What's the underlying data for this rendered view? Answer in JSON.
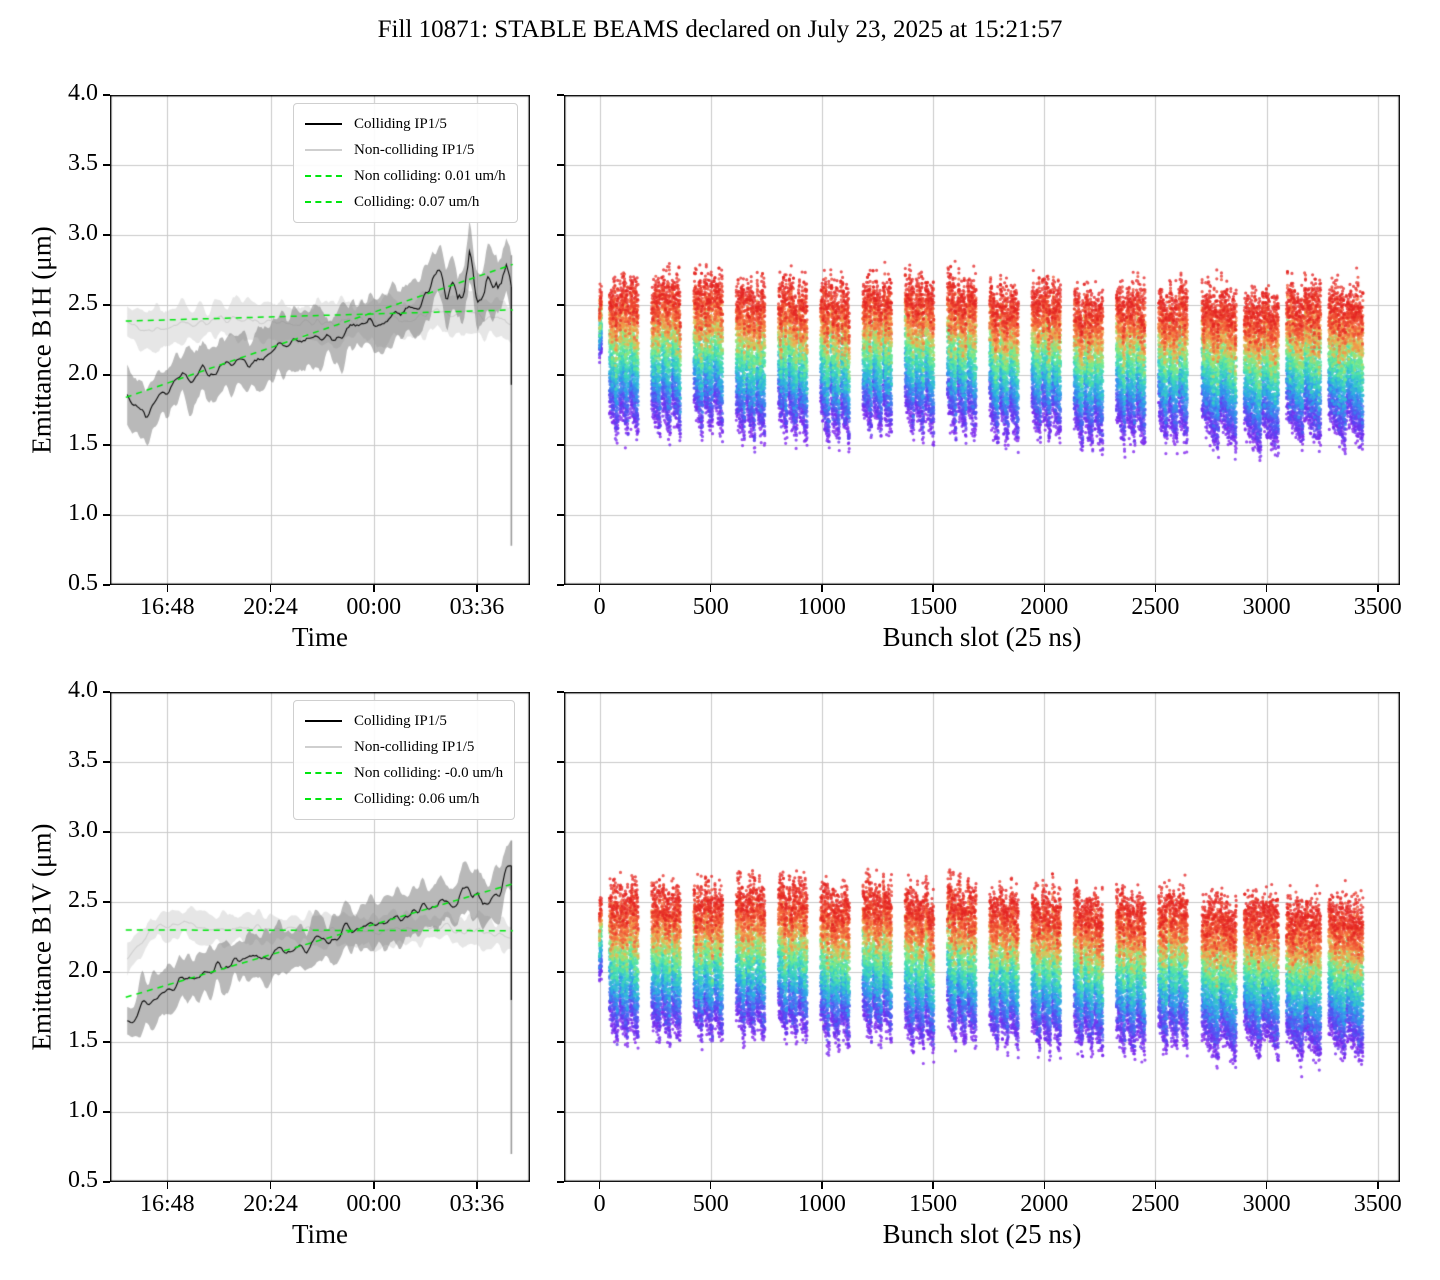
{
  "title": "Fill 10871: STABLE BEAMS declared on July 23, 2025 at 15:21:57",
  "colors": {
    "trend_green": "#00e60e",
    "colliding_line": "#0a0a0a",
    "colliding_band": "rgba(128,128,128,0.55)",
    "non_colliding_line": "#cfcfcf",
    "non_colliding_band": "rgba(205,205,205,0.5)",
    "grid": "#c9c9c9",
    "spine": "#000000"
  },
  "chart_data": [
    {
      "id": "emittance-b1h-vs-time",
      "type": "line",
      "xlabel": "Time",
      "ylabel": "Emittance B1H (μm)",
      "xlim": [
        14.8,
        29.45
      ],
      "ylim": [
        0.5,
        4.0
      ],
      "grid": true,
      "xticks": [
        {
          "v": 16.8,
          "label": "16:48"
        },
        {
          "v": 20.4,
          "label": "20:24"
        },
        {
          "v": 24.0,
          "label": "00:00"
        },
        {
          "v": 27.6,
          "label": "03:36"
        }
      ],
      "yticks": [
        {
          "v": 0.5,
          "label": "0.5"
        },
        {
          "v": 1.0,
          "label": "1.0"
        },
        {
          "v": 1.5,
          "label": "1.5"
        },
        {
          "v": 2.0,
          "label": "2.0"
        },
        {
          "v": 2.5,
          "label": "2.5"
        },
        {
          "v": 3.0,
          "label": "3.0"
        },
        {
          "v": 3.5,
          "label": "3.5"
        },
        {
          "v": 4.0,
          "label": "4.0"
        }
      ],
      "legend": [
        {
          "label": "Colliding IP1/5",
          "style": "solid",
          "color": "#000000"
        },
        {
          "label": "Non-colliding IP1/5",
          "style": "solid",
          "color": "#cfcfcf"
        },
        {
          "label": "Non colliding: 0.01 um/h",
          "style": "dashed",
          "color": "#00e60e"
        },
        {
          "label": "Colliding: 0.07 um/h",
          "style": "dashed",
          "color": "#00e60e"
        }
      ],
      "trend_color": "#00e60e",
      "slopes": {
        "colliding_um_per_h": 0.07,
        "non_colliding_um_per_h": 0.01
      },
      "series": {
        "non_colliding": {
          "t": [
            15.4,
            16.0,
            16.6,
            17.2,
            17.8,
            18.4,
            19.0,
            19.6,
            20.2,
            20.8,
            21.4,
            22.0,
            22.6,
            23.2,
            23.8,
            24.4,
            25.0,
            25.6,
            26.2,
            26.8,
            27.4,
            28.0,
            28.4,
            28.8
          ],
          "v": [
            2.36,
            2.31,
            2.34,
            2.38,
            2.36,
            2.42,
            2.38,
            2.4,
            2.37,
            2.38,
            2.36,
            2.38,
            2.37,
            2.38,
            2.38,
            2.4,
            2.4,
            2.42,
            2.46,
            2.42,
            2.44,
            2.42,
            2.4,
            2.36
          ],
          "band": 0.13,
          "noise": 0.03,
          "samples": 230,
          "seed": 41,
          "line_color": "#cfcfcf",
          "band_color": "rgba(205,205,205,0.5)"
        },
        "colliding": {
          "t": [
            15.4,
            15.7,
            16.05,
            16.35,
            16.65,
            16.95,
            17.3,
            17.65,
            18.0,
            18.4,
            18.8,
            19.2,
            19.6,
            20.0,
            20.4,
            20.8,
            21.2,
            21.6,
            22.0,
            22.4,
            22.8,
            23.2,
            23.6,
            24.0,
            24.4,
            24.8,
            25.2,
            25.6,
            25.95,
            26.25,
            26.55,
            26.85,
            27.1,
            27.35,
            27.6,
            27.85,
            28.1,
            28.35,
            28.6,
            28.8
          ],
          "v": [
            1.86,
            1.8,
            1.71,
            1.8,
            1.87,
            1.93,
            2.03,
            1.96,
            2.05,
            1.99,
            2.07,
            2.11,
            2.06,
            2.13,
            2.17,
            2.21,
            2.25,
            2.22,
            2.28,
            2.31,
            2.27,
            2.35,
            2.38,
            2.36,
            2.43,
            2.41,
            2.49,
            2.53,
            2.62,
            2.8,
            2.56,
            2.66,
            2.5,
            2.83,
            2.63,
            2.59,
            2.73,
            2.63,
            2.84,
            2.72
          ],
          "band": 0.18,
          "noise": 0.045,
          "noise_late": 0.12,
          "late_after": 26.2,
          "samples": 230,
          "seed": 17,
          "line_color": "#0a0a0a",
          "band_color": "rgba(128,128,128,0.55)",
          "spike": {
            "line_to": 1.93,
            "band_to": 0.78,
            "color": "#9b9b9b"
          }
        }
      },
      "trends": [
        {
          "t": [
            15.35,
            28.85
          ],
          "v": [
            2.385,
            2.465
          ]
        },
        {
          "t": [
            15.35,
            28.85
          ],
          "v": [
            1.84,
            2.79
          ]
        }
      ]
    },
    {
      "id": "emittance-b1h-vs-bunch",
      "type": "scatter",
      "xlabel": "Bunch slot (25 ns)",
      "ylabel": "",
      "xlim": [
        -160,
        3600
      ],
      "ylim": [
        0.5,
        4.0
      ],
      "grid": true,
      "xticks": [
        {
          "v": 0,
          "label": "0"
        },
        {
          "v": 500,
          "label": "500"
        },
        {
          "v": 1000,
          "label": "1000"
        },
        {
          "v": 1500,
          "label": "1500"
        },
        {
          "v": 2000,
          "label": "2000"
        },
        {
          "v": 2500,
          "label": "2500"
        },
        {
          "v": 3000,
          "label": "3000"
        },
        {
          "v": 3500,
          "label": "3500"
        }
      ],
      "yticks": [
        {
          "v": 0.5
        },
        {
          "v": 1.0
        },
        {
          "v": 1.5
        },
        {
          "v": 2.0
        },
        {
          "v": 2.5
        },
        {
          "v": 3.0
        },
        {
          "v": 3.5
        },
        {
          "v": 4.0
        }
      ],
      "colormap": [
        [
          0.0,
          "#7a18ec"
        ],
        [
          0.16,
          "#4f52f2"
        ],
        [
          0.33,
          "#28a8e8"
        ],
        [
          0.5,
          "#40dfb0"
        ],
        [
          0.62,
          "#8aeb7a"
        ],
        [
          0.72,
          "#f3b44f"
        ],
        [
          0.84,
          "#f4653c"
        ],
        [
          1.0,
          "#e32020"
        ]
      ],
      "color_encodes": "time since stable beams (violet = early, red = late)",
      "point_radius": 1.6,
      "alpha": 0.75,
      "n_time": 32,
      "pilot": {
        "slot": 0,
        "len": 10,
        "base": 2.18,
        "growth": 0.38
      },
      "trains": [
        {
          "start": 45,
          "len": 130
        },
        {
          "start": 235,
          "len": 130
        },
        {
          "start": 425,
          "len": 130
        },
        {
          "start": 615,
          "len": 130
        },
        {
          "start": 805,
          "len": 130
        },
        {
          "start": 995,
          "len": 130
        },
        {
          "start": 1185,
          "len": 130
        },
        {
          "start": 1375,
          "len": 130
        },
        {
          "start": 1565,
          "len": 130
        },
        {
          "start": 1755,
          "len": 130
        },
        {
          "start": 1945,
          "len": 130
        },
        {
          "start": 2135,
          "len": 130
        },
        {
          "start": 2325,
          "len": 130
        },
        {
          "start": 2515,
          "len": 130
        },
        {
          "start": 2710,
          "len": 155,
          "dense": true
        },
        {
          "start": 2900,
          "len": 155,
          "dense": true
        },
        {
          "start": 3090,
          "len": 155,
          "dense": true
        },
        {
          "start": 3280,
          "len": 155,
          "dense": true
        }
      ],
      "substreaks": 3,
      "substreak_gap": 5,
      "dense_substreaks": 2,
      "dense_gap": 3,
      "bunch_step": 2,
      "base_mean": 1.82,
      "base_spread": 0.06,
      "head_tail_drop": 0.24,
      "growth_mean": 0.8,
      "growth_spread": 0.12,
      "slot_tilt": -0.1,
      "meas_noise": 0.045,
      "seed": 7,
      "y_range_observed": [
        1.4,
        3.1
      ]
    },
    {
      "id": "emittance-b1v-vs-time",
      "type": "line",
      "xlabel": "Time",
      "ylabel": "Emittance B1V (μm)",
      "xlim": [
        14.8,
        29.45
      ],
      "ylim": [
        0.5,
        4.0
      ],
      "grid": true,
      "xticks": [
        {
          "v": 16.8,
          "label": "16:48"
        },
        {
          "v": 20.4,
          "label": "20:24"
        },
        {
          "v": 24.0,
          "label": "00:00"
        },
        {
          "v": 27.6,
          "label": "03:36"
        }
      ],
      "yticks": [
        {
          "v": 0.5,
          "label": "0.5"
        },
        {
          "v": 1.0,
          "label": "1.0"
        },
        {
          "v": 1.5,
          "label": "1.5"
        },
        {
          "v": 2.0,
          "label": "2.0"
        },
        {
          "v": 2.5,
          "label": "2.5"
        },
        {
          "v": 3.0,
          "label": "3.0"
        },
        {
          "v": 3.5,
          "label": "3.5"
        },
        {
          "v": 4.0,
          "label": "4.0"
        }
      ],
      "legend": [
        {
          "label": "Colliding IP1/5",
          "style": "solid",
          "color": "#000000"
        },
        {
          "label": "Non-colliding IP1/5",
          "style": "solid",
          "color": "#cfcfcf"
        },
        {
          "label": "Non colliding: -0.0 um/h",
          "style": "dashed",
          "color": "#00e60e"
        },
        {
          "label": "Colliding: 0.06 um/h",
          "style": "dashed",
          "color": "#00e60e"
        }
      ],
      "trend_color": "#00e60e",
      "slopes": {
        "colliding_um_per_h": 0.06,
        "non_colliding_um_per_h": -0.0
      },
      "series": {
        "non_colliding": {
          "t": [
            15.4,
            15.8,
            16.2,
            16.6,
            17.0,
            17.6,
            18.2,
            19.0,
            20.0,
            21.0,
            22.0,
            23.0,
            24.0,
            25.0,
            26.0,
            26.6,
            27.2,
            27.8,
            28.3,
            28.8
          ],
          "v": [
            2.12,
            2.21,
            2.28,
            2.33,
            2.36,
            2.34,
            2.32,
            2.3,
            2.32,
            2.3,
            2.3,
            2.31,
            2.28,
            2.3,
            2.3,
            2.32,
            2.28,
            2.3,
            2.26,
            2.24
          ],
          "band": 0.1,
          "noise": 0.025,
          "samples": 230,
          "seed": 29,
          "line_color": "#cfcfcf",
          "band_color": "rgba(205,205,205,0.5)"
        },
        "colliding": {
          "t": [
            15.4,
            15.7,
            16.0,
            16.4,
            16.8,
            17.2,
            17.6,
            18.0,
            18.5,
            19.0,
            19.5,
            20.0,
            20.5,
            21.0,
            21.5,
            22.0,
            22.5,
            23.0,
            23.5,
            24.0,
            24.5,
            25.0,
            25.5,
            26.0,
            26.5,
            26.9,
            27.3,
            27.7,
            28.0,
            28.3,
            28.55,
            28.8
          ],
          "v": [
            1.66,
            1.73,
            1.77,
            1.81,
            1.89,
            1.95,
            1.98,
            2.01,
            2.03,
            2.07,
            2.06,
            2.11,
            2.13,
            2.17,
            2.16,
            2.21,
            2.25,
            2.29,
            2.31,
            2.33,
            2.35,
            2.39,
            2.43,
            2.47,
            2.51,
            2.49,
            2.56,
            2.59,
            2.53,
            2.63,
            2.59,
            2.63
          ],
          "band": 0.16,
          "noise": 0.04,
          "noise_late": 0.09,
          "late_after": 26.5,
          "samples": 230,
          "seed": 13,
          "line_color": "#0a0a0a",
          "band_color": "rgba(128,128,128,0.55)",
          "spike": {
            "line_to": 1.8,
            "band_to": 0.7,
            "color": "#9b9b9b"
          }
        }
      },
      "trends": [
        {
          "t": [
            15.35,
            28.85
          ],
          "v": [
            2.3,
            2.295
          ]
        },
        {
          "t": [
            15.35,
            28.85
          ],
          "v": [
            1.82,
            2.63
          ]
        }
      ]
    },
    {
      "id": "emittance-b1v-vs-bunch",
      "type": "scatter",
      "xlabel": "Bunch slot (25 ns)",
      "ylabel": "",
      "xlim": [
        -160,
        3600
      ],
      "ylim": [
        0.5,
        4.0
      ],
      "grid": true,
      "xticks": [
        {
          "v": 0,
          "label": "0"
        },
        {
          "v": 500,
          "label": "500"
        },
        {
          "v": 1000,
          "label": "1000"
        },
        {
          "v": 1500,
          "label": "1500"
        },
        {
          "v": 2000,
          "label": "2000"
        },
        {
          "v": 2500,
          "label": "2500"
        },
        {
          "v": 3000,
          "label": "3000"
        },
        {
          "v": 3500,
          "label": "3500"
        }
      ],
      "yticks": [
        {
          "v": 0.5
        },
        {
          "v": 1.0
        },
        {
          "v": 1.5
        },
        {
          "v": 2.0
        },
        {
          "v": 2.5
        },
        {
          "v": 3.0
        },
        {
          "v": 3.5
        },
        {
          "v": 4.0
        }
      ],
      "colormap": [
        [
          0.0,
          "#7a18ec"
        ],
        [
          0.16,
          "#4f52f2"
        ],
        [
          0.33,
          "#28a8e8"
        ],
        [
          0.5,
          "#40dfb0"
        ],
        [
          0.62,
          "#8aeb7a"
        ],
        [
          0.72,
          "#f3b44f"
        ],
        [
          0.84,
          "#f4653c"
        ],
        [
          1.0,
          "#e32020"
        ]
      ],
      "color_encodes": "time since stable beams (violet = early, red = late)",
      "point_radius": 1.6,
      "alpha": 0.75,
      "n_time": 32,
      "pilot": {
        "slot": 0,
        "len": 10,
        "base": 1.98,
        "growth": 0.5
      },
      "trains": [
        {
          "start": 45,
          "len": 130
        },
        {
          "start": 235,
          "len": 130
        },
        {
          "start": 425,
          "len": 130
        },
        {
          "start": 615,
          "len": 130
        },
        {
          "start": 805,
          "len": 130
        },
        {
          "start": 995,
          "len": 130
        },
        {
          "start": 1185,
          "len": 130
        },
        {
          "start": 1375,
          "len": 130
        },
        {
          "start": 1565,
          "len": 130
        },
        {
          "start": 1755,
          "len": 130
        },
        {
          "start": 1945,
          "len": 130
        },
        {
          "start": 2135,
          "len": 130
        },
        {
          "start": 2325,
          "len": 130
        },
        {
          "start": 2515,
          "len": 130
        },
        {
          "start": 2710,
          "len": 155,
          "dense": true
        },
        {
          "start": 2900,
          "len": 155,
          "dense": true
        },
        {
          "start": 3090,
          "len": 155,
          "dense": true
        },
        {
          "start": 3280,
          "len": 155,
          "dense": true
        }
      ],
      "substreaks": 3,
      "substreak_gap": 5,
      "dense_substreaks": 2,
      "dense_gap": 3,
      "bunch_step": 2,
      "base_mean": 1.76,
      "base_spread": 0.05,
      "head_tail_drop": 0.22,
      "growth_mean": 0.82,
      "growth_spread": 0.12,
      "slot_tilt": -0.15,
      "meas_noise": 0.05,
      "seed": 19,
      "y_range_observed": [
        1.25,
        2.95
      ]
    }
  ]
}
